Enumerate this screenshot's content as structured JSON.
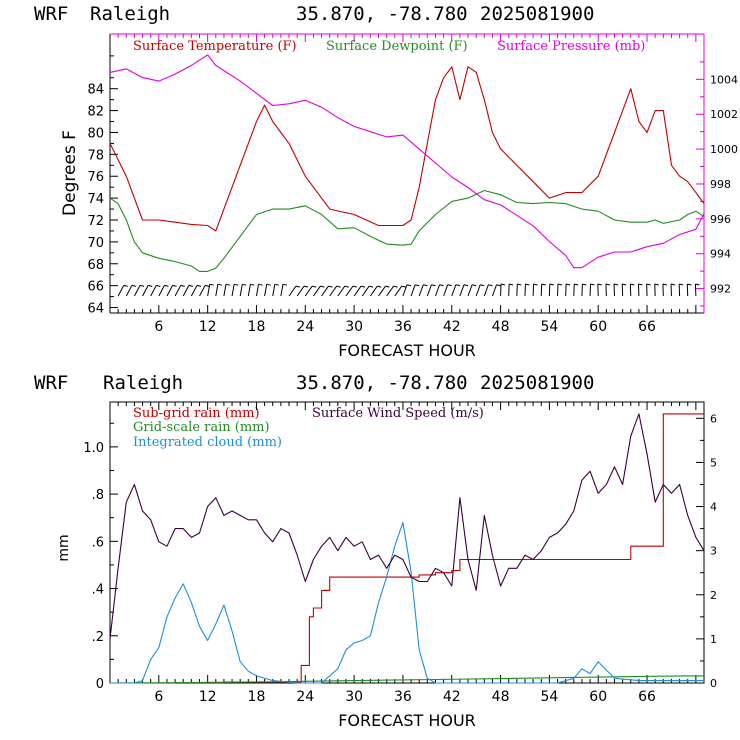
{
  "chart_data": [
    {
      "type": "line",
      "header": {
        "model": "WRF",
        "station": "Raleigh",
        "coords": "35.870, -78.780",
        "run": "2025081900"
      },
      "title": "",
      "xlabel": "FORECAST HOUR",
      "ylabel": "Degrees F",
      "xlim": [
        0,
        73
      ],
      "ylim": [
        63.5,
        89
      ],
      "y2lim": [
        990.6,
        1006.6
      ],
      "grid": false,
      "legend_placement": "top",
      "x_ticks": [
        "6",
        "12",
        "18",
        "24",
        "30",
        "36",
        "42",
        "48",
        "54",
        "60",
        "66"
      ],
      "y_ticks": [
        "64",
        "66",
        "68",
        "70",
        "72",
        "74",
        "76",
        "78",
        "80",
        "82",
        "84"
      ],
      "y2_ticks": [
        "992",
        "994",
        "996",
        "998",
        "1000",
        "1002",
        "1004"
      ],
      "series": [
        {
          "name": "Surface Temperature (F)",
          "color": "#c00000",
          "axis": "left",
          "x": [
            0,
            2,
            4,
            6,
            8,
            10,
            12,
            13,
            14,
            16,
            18,
            19,
            20,
            21,
            22,
            24,
            27,
            30,
            33,
            36,
            37,
            38,
            39,
            40,
            41,
            42,
            43,
            44,
            45,
            46,
            47,
            48,
            50,
            52,
            54,
            56,
            58,
            60,
            62,
            64,
            65,
            66,
            67,
            68,
            69,
            70,
            71,
            72,
            73
          ],
          "y": [
            79,
            76,
            72,
            72,
            71.8,
            71.6,
            71.5,
            71,
            73,
            77,
            81,
            82.5,
            81,
            80,
            79,
            76,
            73,
            72.5,
            71.5,
            71.5,
            72,
            75,
            79,
            83,
            85,
            86,
            83,
            86,
            85.5,
            83,
            80,
            78.5,
            77,
            75.5,
            74,
            74.5,
            74.5,
            76,
            80,
            84,
            81,
            80,
            82,
            82,
            77,
            76,
            75.5,
            74.5,
            73.5
          ]
        },
        {
          "name": "Surface Dewpoint (F)",
          "color": "#228b22",
          "axis": "left",
          "x": [
            0,
            1,
            2,
            3,
            4,
            6,
            8,
            10,
            11,
            12,
            13,
            14,
            16,
            18,
            20,
            22,
            24,
            26,
            28,
            30,
            32,
            34,
            36,
            37,
            38,
            40,
            42,
            44,
            46,
            48,
            50,
            52,
            54,
            56,
            58,
            60,
            62,
            64,
            66,
            67,
            68,
            70,
            71,
            72,
            73
          ],
          "y": [
            74,
            73.5,
            72,
            70,
            69,
            68.5,
            68.2,
            67.8,
            67.3,
            67.3,
            67.6,
            68.5,
            70.5,
            72.5,
            73,
            73,
            73.3,
            72.5,
            71.2,
            71.3,
            70.5,
            69.8,
            69.7,
            69.8,
            71,
            72.5,
            73.7,
            74,
            74.7,
            74.3,
            73.6,
            73.5,
            73.6,
            73.5,
            73,
            72.8,
            72,
            71.8,
            71.8,
            72,
            71.7,
            72,
            72.5,
            72.8,
            72.3
          ]
        },
        {
          "name": "Surface Pressure (mb)",
          "color": "#e000e0",
          "axis": "right",
          "x": [
            0,
            2,
            4,
            6,
            8,
            10,
            12,
            13,
            14,
            16,
            18,
            20,
            22,
            24,
            26,
            28,
            30,
            32,
            34,
            36,
            37,
            38,
            40,
            42,
            44,
            46,
            48,
            50,
            52,
            54,
            56,
            57,
            58,
            60,
            62,
            64,
            66,
            68,
            70,
            72,
            73
          ],
          "y": [
            1004.4,
            1004.6,
            1004.1,
            1003.9,
            1004.3,
            1004.8,
            1005.4,
            1004.8,
            1004.5,
            1003.9,
            1003.2,
            1002.5,
            1002.6,
            1002.8,
            1002.4,
            1001.8,
            1001.3,
            1001,
            1000.7,
            1000.8,
            1000.4,
            1000,
            999.2,
            998.4,
            997.8,
            997.1,
            996.8,
            996.2,
            995.6,
            994.7,
            993.9,
            993.2,
            993.2,
            993.8,
            994.1,
            994.1,
            994.4,
            994.6,
            995.1,
            995.4,
            996.3
          ]
        }
      ]
    },
    {
      "type": "line",
      "header": {
        "model": "WRF",
        "station": "Raleigh",
        "coords": "35.870, -78.780",
        "run": "2025081900"
      },
      "title": "",
      "xlabel": "FORECAST HOUR",
      "ylabel": "mm",
      "xlim": [
        0,
        73
      ],
      "ylim": [
        0,
        1.19
      ],
      "y2lim": [
        0,
        6.37
      ],
      "grid": false,
      "legend_placement": "top-left",
      "x_ticks": [
        "6",
        "12",
        "18",
        "24",
        "30",
        "36",
        "42",
        "48",
        "54",
        "60",
        "66"
      ],
      "y_ticks": [
        "0",
        ".2",
        ".4",
        ".6",
        ".8",
        "1.0"
      ],
      "y2_ticks": [
        "0",
        "1",
        "2",
        "3",
        "4",
        "5",
        "6"
      ],
      "series": [
        {
          "name": "Sub-grid rain (mm)",
          "color": "#c00000",
          "axis": "right",
          "x": [
            0,
            7,
            8,
            13,
            14,
            23,
            23.5,
            24.5,
            25,
            26,
            27,
            38,
            40,
            42,
            42.5,
            43,
            55,
            63,
            64,
            67,
            68,
            73
          ],
          "y": [
            0,
            0,
            0.01,
            0.01,
            0.02,
            0.02,
            0.4,
            1.5,
            1.7,
            2.1,
            2.4,
            2.45,
            2.5,
            2.55,
            2.55,
            2.8,
            2.8,
            2.8,
            3.1,
            3.1,
            6.1,
            6.1
          ]
        },
        {
          "name": "Grid-scale rain (mm)",
          "color": "#228b22",
          "axis": "left",
          "x": [
            0,
            10,
            20,
            30,
            40,
            50,
            60,
            70,
            73
          ],
          "y": [
            0,
            0.002,
            0.005,
            0.01,
            0.015,
            0.02,
            0.025,
            0.03,
            0.03
          ]
        },
        {
          "name": "Integrated cloud (mm)",
          "color": "#1e8fd6",
          "axis": "left",
          "x": [
            0,
            3,
            4,
            5,
            6,
            7,
            8,
            9,
            10,
            11,
            12,
            13,
            14,
            15,
            16,
            17,
            18,
            20,
            23,
            26,
            28,
            29,
            30,
            31,
            32,
            33,
            34,
            35,
            36,
            37,
            38,
            39,
            40,
            45,
            55,
            57,
            58,
            59,
            60,
            62,
            65,
            73
          ],
          "y": [
            0,
            0,
            0.01,
            0.1,
            0.15,
            0.28,
            0.36,
            0.42,
            0.34,
            0.24,
            0.18,
            0.25,
            0.33,
            0.22,
            0.09,
            0.05,
            0.03,
            0.01,
            0,
            0,
            0.06,
            0.14,
            0.17,
            0.18,
            0.2,
            0.34,
            0.45,
            0.58,
            0.68,
            0.47,
            0.14,
            0.02,
            0,
            0,
            0,
            0.02,
            0.06,
            0.04,
            0.09,
            0.02,
            0.01,
            0.01
          ]
        },
        {
          "name": "Surface Wind Speed (m/s)",
          "color": "#3a003a",
          "axis": "right",
          "x": [
            0,
            1,
            2,
            3,
            4,
            5,
            6,
            7,
            8,
            9,
            10,
            11,
            12,
            13,
            14,
            15,
            16,
            17,
            18,
            19,
            20,
            21,
            22,
            23,
            24,
            25,
            26,
            27,
            28,
            29,
            30,
            31,
            32,
            33,
            34,
            35,
            36,
            37,
            38,
            39,
            40,
            41,
            42,
            43,
            44,
            45,
            46,
            47,
            48,
            49,
            50,
            51,
            52,
            53,
            54,
            55,
            56,
            57,
            58,
            59,
            60,
            61,
            62,
            63,
            64,
            65,
            66,
            67,
            68,
            69,
            70,
            71,
            72,
            73
          ],
          "y": [
            1,
            2.6,
            4.1,
            4.5,
            3.9,
            3.7,
            3.2,
            3.1,
            3.5,
            3.5,
            3.3,
            3.4,
            4,
            4.2,
            3.8,
            3.9,
            3.8,
            3.7,
            3.7,
            3.4,
            3.2,
            3.5,
            3.4,
            2.9,
            2.3,
            2.8,
            3.1,
            3.3,
            3,
            3.3,
            3.1,
            3.2,
            2.8,
            2.9,
            2.6,
            2.9,
            2.8,
            2.4,
            2.3,
            2.3,
            2.6,
            2.5,
            2.2,
            4.2,
            2.8,
            2.1,
            3.8,
            2.9,
            2.2,
            2.6,
            2.6,
            2.9,
            2.8,
            3,
            3.3,
            3.4,
            3.6,
            3.9,
            4.6,
            4.8,
            4.3,
            4.5,
            4.9,
            4.5,
            5.6,
            6.1,
            5.2,
            4.1,
            4.5,
            4.3,
            4.5,
            3.8,
            3.3,
            3
          ]
        }
      ]
    }
  ]
}
